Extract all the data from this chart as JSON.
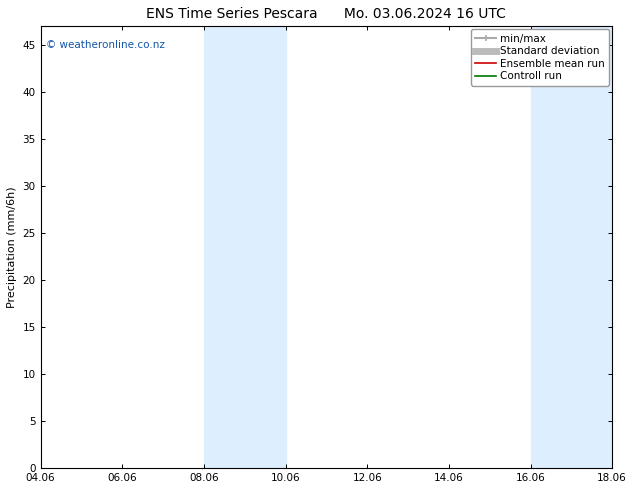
{
  "title_left": "ENS Time Series Pescara",
  "title_right": "Mo. 03.06.2024 16 UTC",
  "ylabel": "Precipitation (mm/6h)",
  "xlim_min": 0.0,
  "xlim_max": 14.0,
  "ylim_min": 0,
  "ylim_max": 47,
  "yticks": [
    0,
    5,
    10,
    15,
    20,
    25,
    30,
    35,
    40,
    45
  ],
  "xtick_positions": [
    0,
    2,
    4,
    6,
    8,
    10,
    12,
    14
  ],
  "xtick_labels": [
    "04.06",
    "06.06",
    "08.06",
    "10.06",
    "12.06",
    "14.06",
    "16.06",
    "18.06"
  ],
  "shaded_bands": [
    {
      "x_start": 4.0,
      "x_end": 5.0,
      "color": "#ddeeff"
    },
    {
      "x_start": 5.0,
      "x_end": 6.0,
      "color": "#ddeeff"
    },
    {
      "x_start": 12.0,
      "x_end": 13.0,
      "color": "#ddeeff"
    },
    {
      "x_start": 13.0,
      "x_end": 14.0,
      "color": "#ddeeff"
    }
  ],
  "legend_items": [
    {
      "label": "min/max",
      "color": "#aaaaaa",
      "linewidth": 1.5,
      "style": "minmax"
    },
    {
      "label": "Standard deviation",
      "color": "#bbbbbb",
      "linewidth": 5,
      "style": "line"
    },
    {
      "label": "Ensemble mean run",
      "color": "#cc0000",
      "linewidth": 1.2,
      "style": "line"
    },
    {
      "label": "Controll run",
      "color": "#007700",
      "linewidth": 1.2,
      "style": "line"
    }
  ],
  "watermark_text": "© weatheronline.co.nz",
  "watermark_color": "#1155aa",
  "bg_color": "#ffffff",
  "plot_bg_color": "#ffffff",
  "axis_color": "#000000",
  "tick_color": "#000000",
  "font_size_title": 10,
  "font_size_axis": 8,
  "font_size_tick": 7.5,
  "font_size_legend": 7.5,
  "font_size_watermark": 7.5
}
